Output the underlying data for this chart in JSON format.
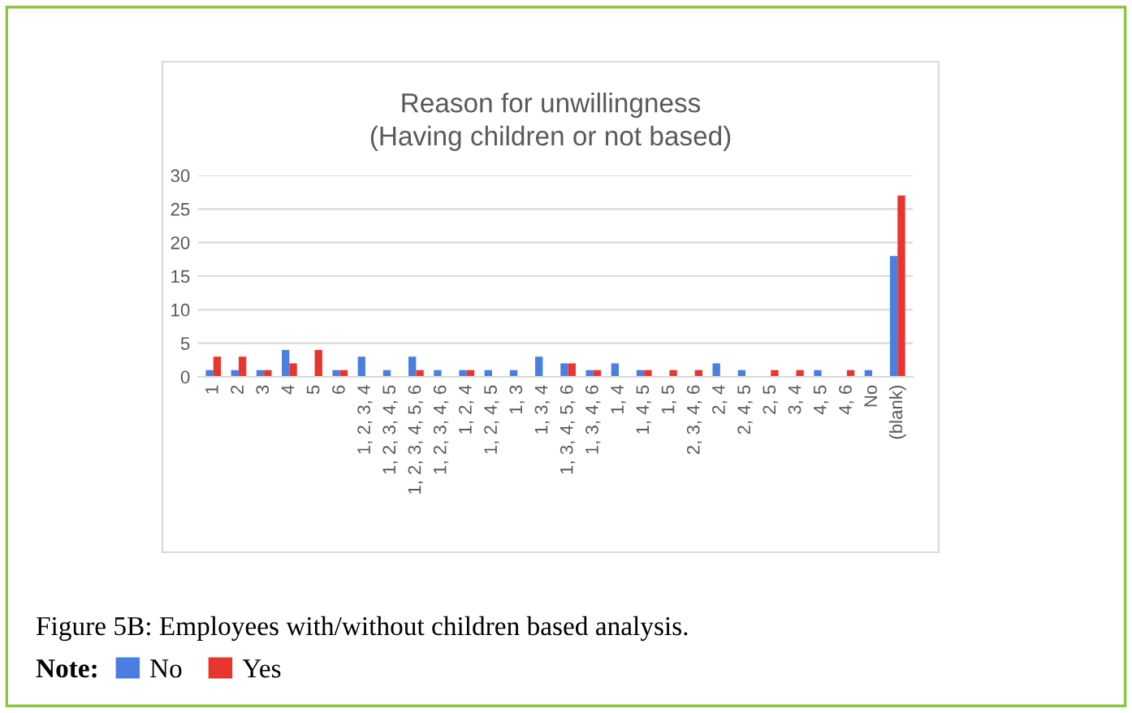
{
  "chart_data": {
    "type": "bar",
    "title": "Reason for unwillingness\n(Having children or not based)",
    "categories": [
      "1",
      "2",
      "3",
      "4",
      "5",
      "6",
      "1, 2, 3, 4",
      "1, 2, 3, 4, 5",
      "1, 2, 3, 4, 5, 6",
      "1, 2, 3, 4, 6",
      "1, 2, 4",
      "1, 2, 4, 5",
      "1, 3",
      "1, 3, 4",
      "1, 3, 4, 5, 6",
      "1, 3, 4, 6",
      "1, 4",
      "1, 4, 5",
      "1, 5",
      "2, 3, 4, 6",
      "2, 4",
      "2, 4, 5",
      "2, 5",
      "3, 4",
      "4, 5",
      "4, 6",
      "No",
      "(blank)"
    ],
    "series": [
      {
        "name": "No",
        "color": "#4a7fe0",
        "values": [
          1,
          1,
          1,
          4,
          0,
          1,
          3,
          1,
          3,
          1,
          1,
          1,
          1,
          3,
          2,
          1,
          2,
          1,
          0,
          0,
          2,
          1,
          0,
          0,
          1,
          0,
          1,
          18
        ]
      },
      {
        "name": "Yes",
        "color": "#e8352e",
        "values": [
          3,
          3,
          1,
          2,
          4,
          1,
          0,
          0,
          1,
          0,
          1,
          0,
          0,
          0,
          2,
          1,
          0,
          1,
          1,
          1,
          0,
          0,
          1,
          1,
          0,
          1,
          0,
          27
        ]
      }
    ],
    "ylim": [
      0,
      30
    ],
    "yticks": [
      0,
      5,
      10,
      15,
      20,
      25,
      30
    ],
    "grid": "y",
    "legend": "bottom",
    "annotations": [
      "Figure 5B: Employees with/without children based analysis.",
      "Note:"
    ]
  }
}
